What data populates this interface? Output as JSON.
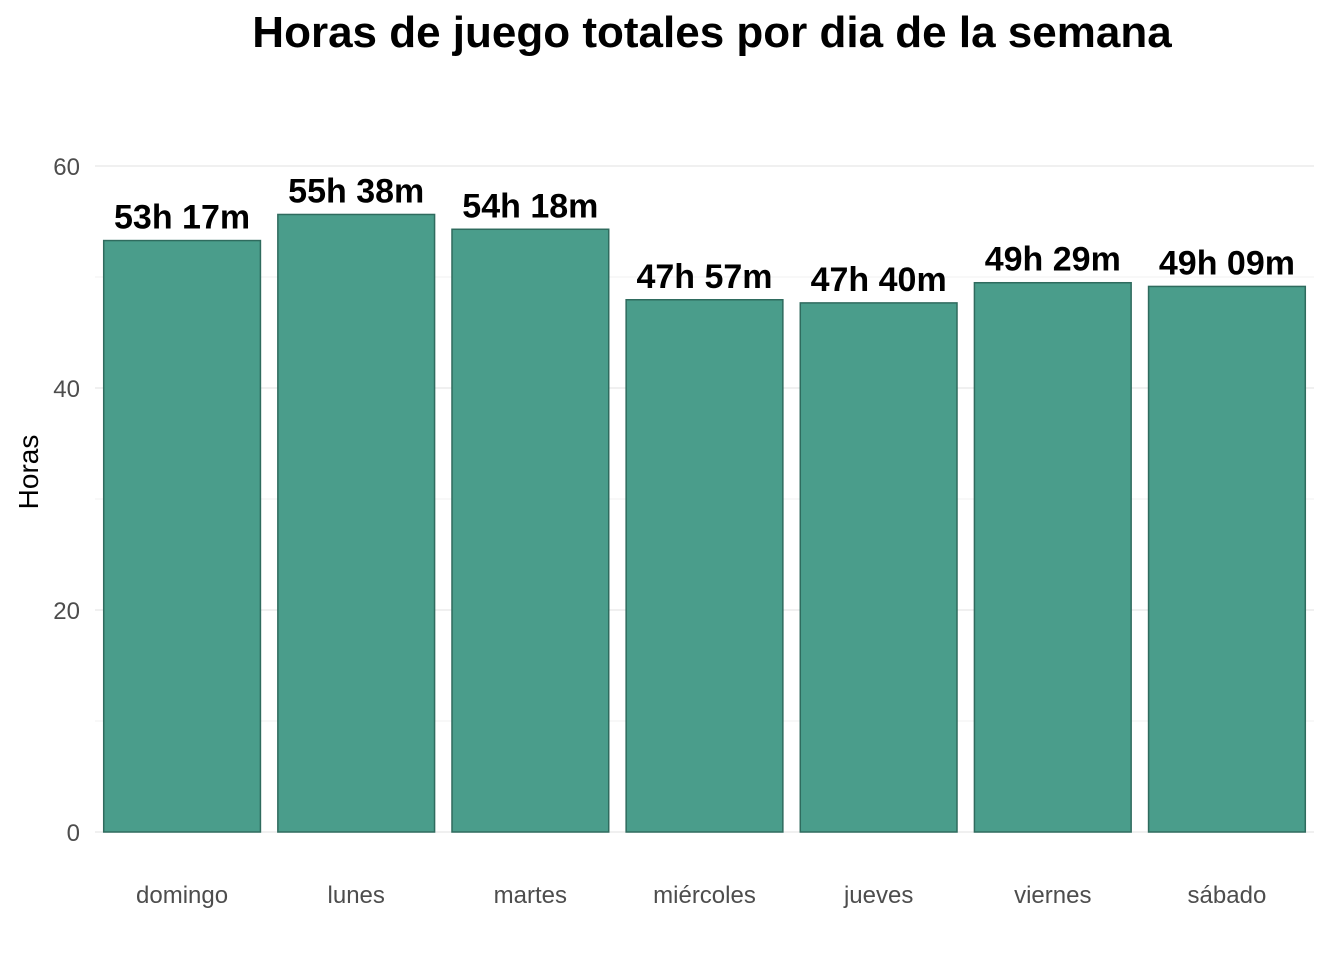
{
  "chart_data": {
    "type": "bar",
    "title": "Horas de juego totales por dia de la semana",
    "xlabel": "",
    "ylabel": "Horas",
    "categories": [
      "domingo",
      "lunes",
      "martes",
      "miércoles",
      "jueves",
      "viernes",
      "sábado"
    ],
    "values": [
      53.2833,
      55.6333,
      54.3,
      47.95,
      47.6667,
      49.4833,
      49.15
    ],
    "data_labels": [
      "53h 17m",
      "55h 38m",
      "54h 18m",
      "47h 57m",
      "47h 40m",
      "49h 29m",
      "49h 09m"
    ],
    "ylim": [
      0,
      60
    ],
    "yticks": [
      0,
      20,
      40,
      60
    ],
    "grid": true,
    "legend": "none",
    "colors": {
      "bar_fill": "#4a9d8b",
      "bar_stroke": "#2f6b5e"
    }
  }
}
